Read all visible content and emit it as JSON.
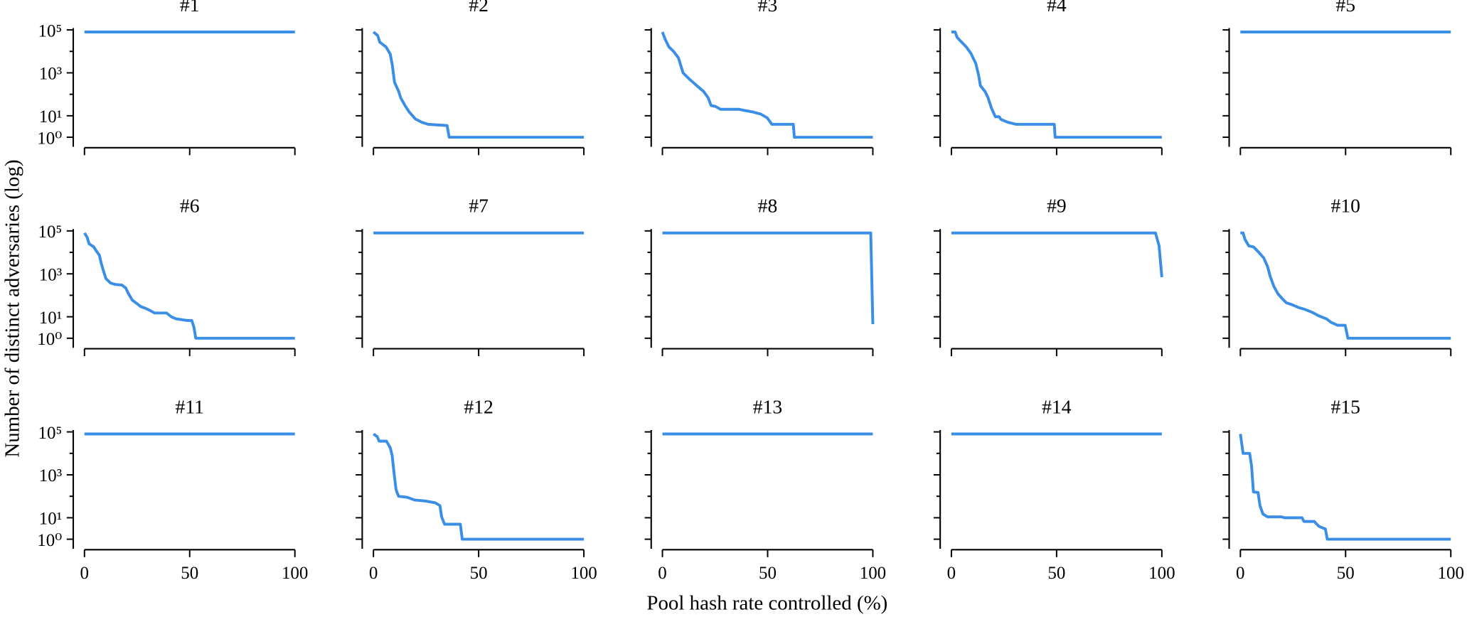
{
  "figure": {
    "xlabel": "Pool hash rate controlled (%)",
    "ylabel": "Number of distinct adversaries (log)",
    "color": "#3a8ee6",
    "yscale": "symlog",
    "linthresh": 1,
    "xlim": [
      0,
      100
    ],
    "xticks": [
      0,
      50,
      100
    ],
    "ylim": [
      0.6,
      100000
    ],
    "yticks": [
      {
        "value": 1,
        "label": "10⁰"
      },
      {
        "value": 10,
        "label": "10¹"
      },
      {
        "value": 1000,
        "label": "10³"
      },
      {
        "value": 100000,
        "label": "10⁵"
      }
    ],
    "yminorticks": [
      100,
      10000
    ]
  },
  "chart_data": [
    {
      "type": "line",
      "title": "#1",
      "x": [
        0,
        100
      ],
      "values": [
        80000,
        80000
      ]
    },
    {
      "type": "line",
      "title": "#2",
      "x": [
        0,
        2,
        3,
        6,
        8,
        9,
        10,
        12,
        13,
        15,
        17,
        20,
        23,
        26,
        35,
        36,
        100
      ],
      "values": [
        80000,
        55000,
        27000,
        16000,
        7400,
        2200,
        370,
        135,
        67,
        30,
        15,
        7,
        5,
        4,
        3.5,
        1,
        1
      ]
    },
    {
      "type": "line",
      "title": "#3",
      "x": [
        0,
        1.3,
        3.1,
        5.3,
        7.6,
        9.8,
        12.9,
        16.4,
        19.6,
        21.8,
        23.1,
        25.3,
        27.6,
        36.4,
        38.7,
        43,
        46.7,
        49.8,
        52,
        62.2,
        62.7,
        100
      ],
      "values": [
        80000,
        37000,
        16000,
        10000,
        5000,
        1000,
        500,
        250,
        135,
        67,
        30,
        27,
        20,
        20,
        18,
        15,
        12,
        8,
        4,
        4,
        1,
        1
      ]
    },
    {
      "type": "line",
      "title": "#4",
      "x": [
        0,
        1.8,
        2.7,
        4.4,
        7.1,
        9.3,
        11.6,
        12.9,
        13.8,
        16,
        17.3,
        19.1,
        20.9,
        22.7,
        23.6,
        26.7,
        30.7,
        48.9,
        49.3,
        100
      ],
      "values": [
        80000,
        80000,
        45000,
        30000,
        16000,
        8000,
        2700,
        800,
        250,
        135,
        75,
        22,
        9,
        9,
        6.7,
        5,
        4,
        4,
        1,
        1
      ]
    },
    {
      "type": "line",
      "title": "#5",
      "x": [
        0,
        100
      ],
      "values": [
        80000,
        80000
      ]
    },
    {
      "type": "line",
      "title": "#6",
      "x": [
        0,
        1.3,
        2.2,
        4.4,
        5.8,
        7.1,
        8,
        8.9,
        10.2,
        12.4,
        14.7,
        17.8,
        19.6,
        20.9,
        22.7,
        24.4,
        26.7,
        28.9,
        31,
        33.3,
        39,
        41.3,
        43.6,
        48.9,
        51,
        52,
        52.9,
        100
      ],
      "values": [
        80000,
        50000,
        25000,
        18000,
        11000,
        7400,
        3000,
        1500,
        600,
        370,
        320,
        300,
        220,
        120,
        60,
        45,
        30,
        25,
        20,
        15,
        15,
        10,
        8,
        6.7,
        6.7,
        3.3,
        1,
        1
      ]
    },
    {
      "type": "line",
      "title": "#7",
      "x": [
        0,
        100
      ],
      "values": [
        80000,
        80000
      ]
    },
    {
      "type": "line",
      "title": "#8",
      "x": [
        0,
        99,
        100
      ],
      "values": [
        80000,
        80000,
        4.5
      ]
    },
    {
      "type": "line",
      "title": "#9",
      "x": [
        0,
        97,
        98.7,
        100
      ],
      "values": [
        80000,
        80000,
        20000,
        700
      ]
    },
    {
      "type": "line",
      "title": "#10",
      "x": [
        0,
        1.3,
        2.2,
        4,
        6.2,
        8.4,
        11.1,
        12.9,
        14.2,
        16,
        17.8,
        19.6,
        21.8,
        24.4,
        27.6,
        30.7,
        34.2,
        37.3,
        40.9,
        43.1,
        46.2,
        49.8,
        51.1,
        100
      ],
      "values": [
        80000,
        80000,
        40000,
        20000,
        18000,
        11000,
        5500,
        2200,
        740,
        250,
        120,
        75,
        45,
        37,
        27,
        22,
        16,
        11,
        8,
        5.5,
        4,
        4,
        1,
        1
      ]
    },
    {
      "type": "line",
      "title": "#11",
      "x": [
        0,
        100
      ],
      "values": [
        80000,
        80000
      ]
    },
    {
      "type": "line",
      "title": "#12",
      "x": [
        0,
        1.8,
        2.7,
        6.2,
        8,
        8.9,
        9.8,
        10.7,
        11.1,
        12,
        16,
        19.6,
        24.9,
        29.3,
        31.6,
        32.4,
        33.8,
        41.3,
        42.2,
        100
      ],
      "values": [
        80000,
        60000,
        37000,
        37000,
        18000,
        8000,
        1200,
        220,
        160,
        100,
        90,
        67,
        60,
        50,
        37,
        11,
        5,
        5,
        1,
        1
      ]
    },
    {
      "type": "line",
      "title": "#13",
      "x": [
        0,
        100
      ],
      "values": [
        80000,
        80000
      ]
    },
    {
      "type": "line",
      "title": "#14",
      "x": [
        0,
        100
      ],
      "values": [
        80000,
        80000
      ]
    },
    {
      "type": "line",
      "title": "#15",
      "x": [
        0,
        1.3,
        4.4,
        5.3,
        6.2,
        8.4,
        9.3,
        10.7,
        12.9,
        19.6,
        20.9,
        29.3,
        30.2,
        35.1,
        37.3,
        40.4,
        41.3,
        100
      ],
      "values": [
        80000,
        10000,
        10000,
        2700,
        160,
        150,
        37,
        15,
        11,
        11,
        10,
        10,
        6.7,
        6.7,
        4,
        3,
        1,
        1
      ]
    }
  ]
}
